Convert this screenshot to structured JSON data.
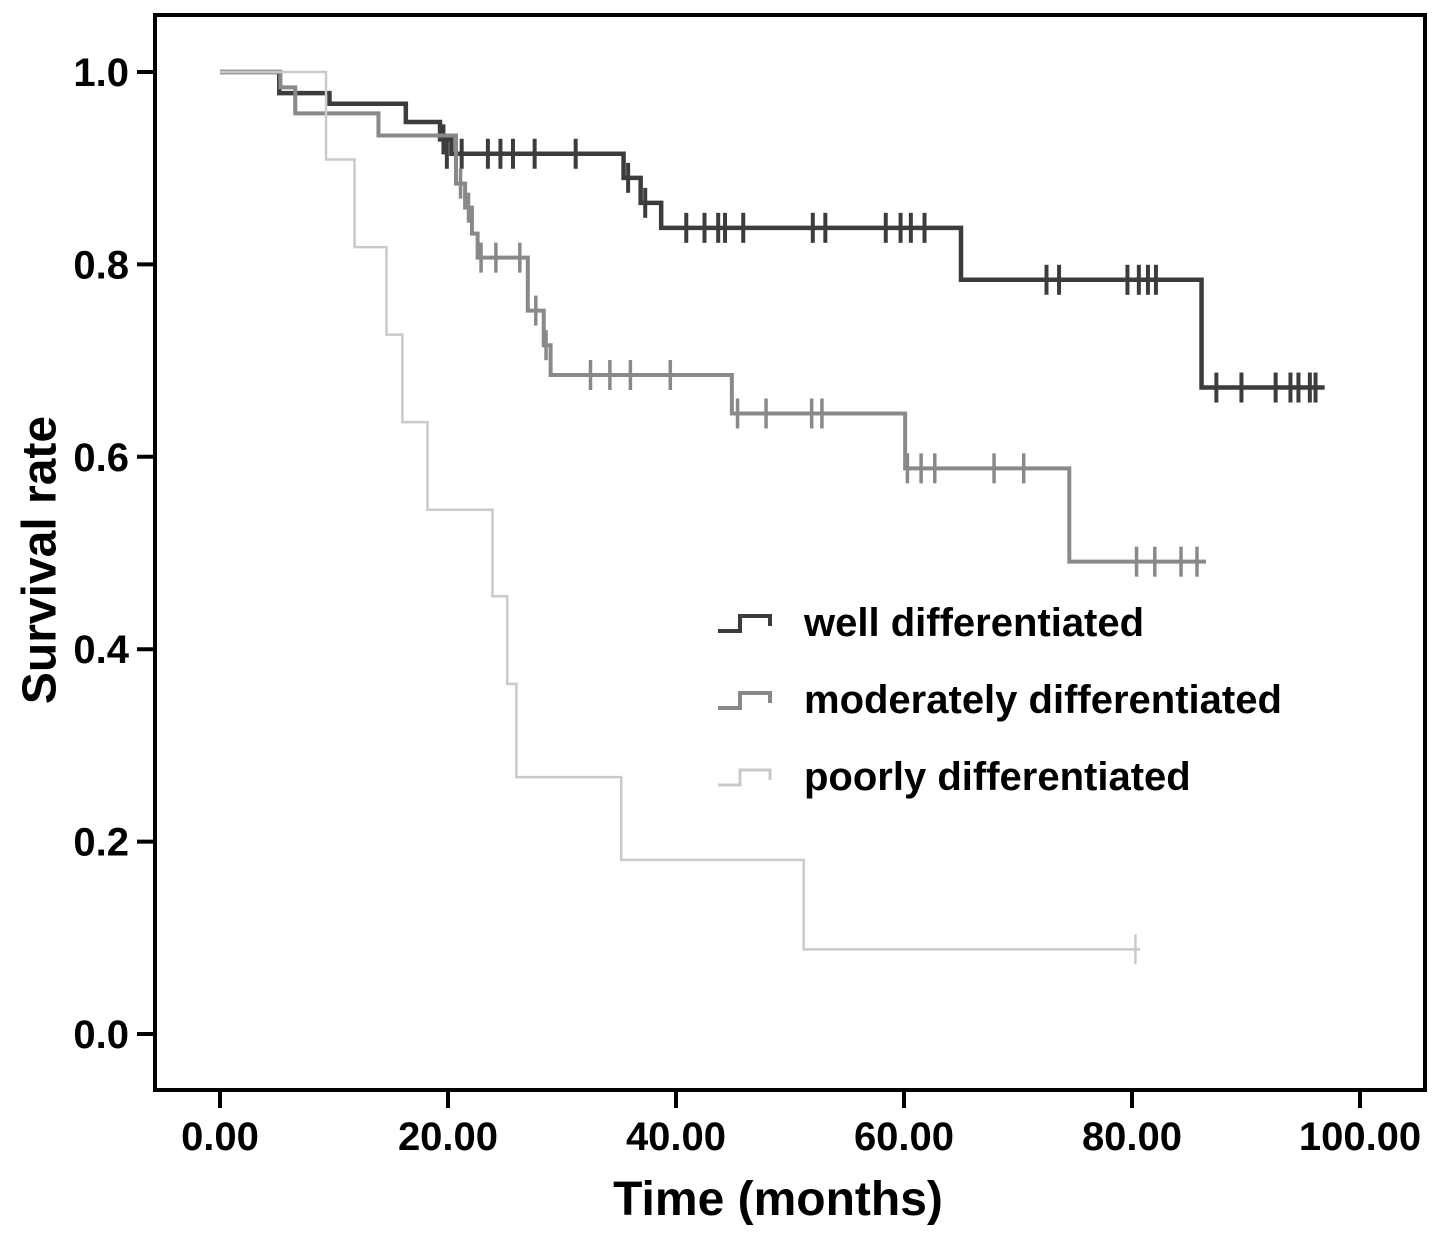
{
  "figure": {
    "background": "#ffffff",
    "axis_color": "#000000"
  },
  "chart_data": {
    "type": "line",
    "subtype": "kaplan-meier-step",
    "title": "",
    "xlabel": "Time (months)",
    "ylabel": "Survival rate",
    "grid": false,
    "legend_position": "inside-right-middle",
    "xlim": [
      -5.7,
      105.7
    ],
    "ylim": [
      -0.059,
      1.059
    ],
    "x_ticks": {
      "values": [
        0,
        20,
        40,
        60,
        80,
        100
      ],
      "labels": [
        "0.00",
        "20.00",
        "40.00",
        "60.00",
        "80.00",
        "100.00"
      ]
    },
    "y_ticks": {
      "values": [
        1.0,
        0.8,
        0.6,
        0.4,
        0.2,
        0.0
      ],
      "labels": [
        "1.0",
        "0.8",
        "0.6",
        "0.4",
        "0.2",
        "0.0"
      ]
    },
    "series": [
      {
        "name": "well differentiated",
        "color": "#3c3c3c",
        "line_width": 4.5,
        "censor_width": 4,
        "steps": [
          [
            0,
            1.0
          ],
          [
            5.2,
            0.978
          ],
          [
            9.6,
            0.967
          ],
          [
            16.3,
            0.948
          ],
          [
            19.3,
            0.93
          ],
          [
            20.3,
            0.915
          ],
          [
            35.4,
            0.89
          ],
          [
            36.9,
            0.864
          ],
          [
            38.7,
            0.838
          ],
          [
            65.0,
            0.784
          ],
          [
            86.1,
            0.672
          ]
        ],
        "end_time": 96.9,
        "censors": [
          [
            19.6,
            0.93
          ],
          [
            19.9,
            0.915
          ],
          [
            20.7,
            0.915
          ],
          [
            21.2,
            0.915
          ],
          [
            23.5,
            0.915
          ],
          [
            24.6,
            0.915
          ],
          [
            25.7,
            0.915
          ],
          [
            27.6,
            0.915
          ],
          [
            31.2,
            0.915
          ],
          [
            35.8,
            0.89
          ],
          [
            37.3,
            0.864
          ],
          [
            40.9,
            0.838
          ],
          [
            42.5,
            0.838
          ],
          [
            43.7,
            0.838
          ],
          [
            44.3,
            0.838
          ],
          [
            45.9,
            0.838
          ],
          [
            52.0,
            0.838
          ],
          [
            53.1,
            0.838
          ],
          [
            58.4,
            0.838
          ],
          [
            59.7,
            0.838
          ],
          [
            60.6,
            0.838
          ],
          [
            61.8,
            0.838
          ],
          [
            72.5,
            0.784
          ],
          [
            73.6,
            0.784
          ],
          [
            79.6,
            0.784
          ],
          [
            80.6,
            0.784
          ],
          [
            81.4,
            0.784
          ],
          [
            82.1,
            0.784
          ],
          [
            87.4,
            0.672
          ],
          [
            89.6,
            0.672
          ],
          [
            92.6,
            0.672
          ],
          [
            93.9,
            0.672
          ],
          [
            94.6,
            0.672
          ],
          [
            95.6,
            0.672
          ],
          [
            96.1,
            0.672
          ]
        ]
      },
      {
        "name": "moderately differentiated",
        "color": "#898989",
        "line_width": 4,
        "censor_width": 3.5,
        "steps": [
          [
            0,
            1.0
          ],
          [
            5.3,
            0.984
          ],
          [
            6.6,
            0.957
          ],
          [
            13.9,
            0.934
          ],
          [
            20.7,
            0.884
          ],
          [
            21.5,
            0.859
          ],
          [
            22.1,
            0.832
          ],
          [
            22.6,
            0.807
          ],
          [
            27.0,
            0.752
          ],
          [
            28.4,
            0.716
          ],
          [
            29.0,
            0.685
          ],
          [
            44.9,
            0.645
          ],
          [
            60.1,
            0.588
          ],
          [
            74.5,
            0.491
          ]
        ],
        "end_time": 86.5,
        "censors": [
          [
            21.1,
            0.884
          ],
          [
            21.8,
            0.859
          ],
          [
            22.9,
            0.807
          ],
          [
            24.2,
            0.807
          ],
          [
            26.3,
            0.807
          ],
          [
            27.7,
            0.752
          ],
          [
            28.6,
            0.716
          ],
          [
            32.5,
            0.685
          ],
          [
            34.2,
            0.685
          ],
          [
            36.0,
            0.685
          ],
          [
            39.5,
            0.685
          ],
          [
            45.4,
            0.645
          ],
          [
            47.9,
            0.645
          ],
          [
            51.9,
            0.645
          ],
          [
            52.8,
            0.645
          ],
          [
            60.3,
            0.588
          ],
          [
            61.5,
            0.588
          ],
          [
            62.7,
            0.588
          ],
          [
            67.9,
            0.588
          ],
          [
            70.5,
            0.588
          ],
          [
            80.4,
            0.491
          ],
          [
            82.0,
            0.491
          ],
          [
            84.3,
            0.491
          ],
          [
            85.7,
            0.491
          ]
        ]
      },
      {
        "name": "poorly differentiated",
        "color": "#c8cbc8",
        "line_width": 2.5,
        "censor_width": 2.5,
        "steps": [
          [
            0,
            1.0
          ],
          [
            9.3,
            0.909
          ],
          [
            11.8,
            0.818
          ],
          [
            14.6,
            0.727
          ],
          [
            16.0,
            0.636
          ],
          [
            18.2,
            0.545
          ],
          [
            23.9,
            0.455
          ],
          [
            25.2,
            0.364
          ],
          [
            26.0,
            0.267
          ],
          [
            35.2,
            0.181
          ],
          [
            51.2,
            0.088
          ]
        ],
        "end_time": 80.7,
        "censors": [
          [
            80.3,
            0.088
          ]
        ]
      }
    ]
  }
}
